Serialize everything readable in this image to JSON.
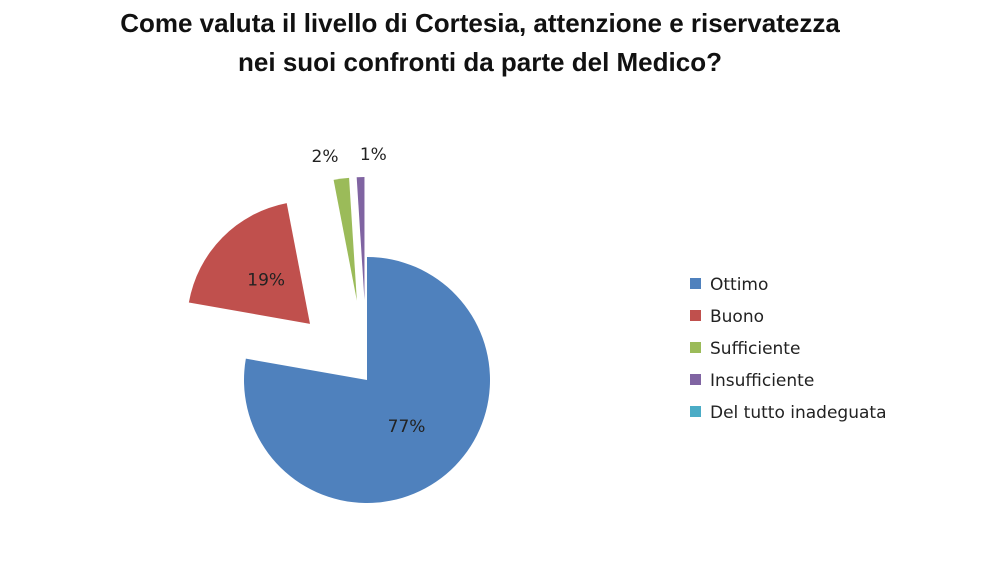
{
  "chart_data": {
    "type": "pie",
    "title": "Come valuta il livello di Cortesia, attenzione e riservatezza nei suoi confronti da parte del Medico?",
    "categories": [
      "Ottimo",
      "Buono",
      "Sufficiente",
      "Insufficiente",
      "Del tutto inadeguata"
    ],
    "values": [
      77,
      19,
      2,
      1,
      0
    ],
    "value_labels": [
      "77%",
      "19%",
      "2%",
      "1%",
      null
    ],
    "colors": [
      "#4f81bd",
      "#c0504d",
      "#9bbb59",
      "#8064a2",
      "#4bacc6"
    ],
    "legend": "right"
  }
}
